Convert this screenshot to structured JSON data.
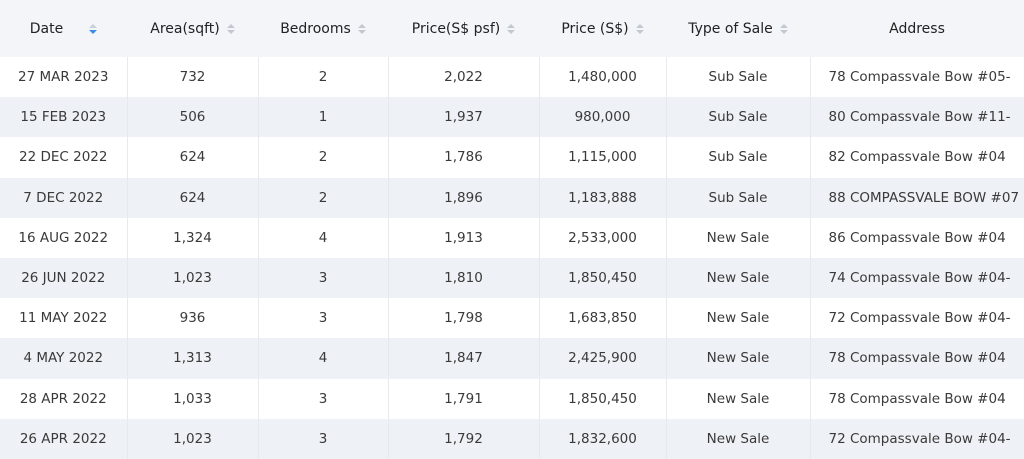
{
  "table": {
    "headers": [
      "Date",
      "Area(sqft)",
      "Bedrooms",
      "Price(S$ psf)",
      "Price (S$)",
      "Type of Sale",
      "Address"
    ],
    "rows": [
      [
        "27 MAR 2023",
        "732",
        "2",
        "2,022",
        "1,480,000",
        "Sub Sale",
        "78 Compassvale Bow #05-"
      ],
      [
        "15 FEB 2023",
        "506",
        "1",
        "1,937",
        "980,000",
        "Sub Sale",
        "80 Compassvale Bow #11-"
      ],
      [
        "22 DEC 2022",
        "624",
        "2",
        "1,786",
        "1,115,000",
        "Sub Sale",
        "82 Compassvale Bow #04"
      ],
      [
        "7 DEC 2022",
        "624",
        "2",
        "1,896",
        "1,183,888",
        "Sub Sale",
        "88 COMPASSVALE BOW #07"
      ],
      [
        "16 AUG 2022",
        "1,324",
        "4",
        "1,913",
        "2,533,000",
        "New Sale",
        "86 Compassvale Bow #04"
      ],
      [
        "26 JUN 2022",
        "1,023",
        "3",
        "1,810",
        "1,850,450",
        "New Sale",
        "74 Compassvale Bow #04-"
      ],
      [
        "11 MAY 2022",
        "936",
        "3",
        "1,798",
        "1,683,850",
        "New Sale",
        "72 Compassvale Bow #04-"
      ],
      [
        "4 MAY 2022",
        "1,313",
        "4",
        "1,847",
        "2,425,900",
        "New Sale",
        "78 Compassvale Bow #04"
      ],
      [
        "28 APR 2022",
        "1,033",
        "3",
        "1,791",
        "1,850,450",
        "New Sale",
        "78 Compassvale Bow #04"
      ],
      [
        "26 APR 2022",
        "1,023",
        "3",
        "1,792",
        "1,832,600",
        "New Sale",
        "72 Compassvale Bow #04-"
      ]
    ]
  }
}
